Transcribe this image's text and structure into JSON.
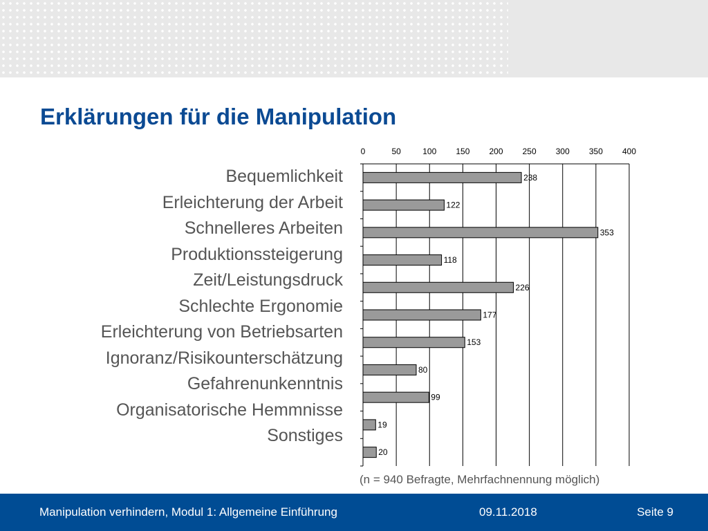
{
  "slide": {
    "title": "Erklärungen für die Manipulation",
    "note": "(n = 940 Befragte, Mehrfachnennung möglich)",
    "footer": {
      "course": "Manipulation verhindern, Modul 1: Allgemeine Einführung",
      "date": "09.11.2018",
      "page": "Seite 9"
    },
    "colors": {
      "title": "#0b4a93",
      "footer_bg": "#004c94",
      "bar_fill": "#9a9a9a",
      "label_text": "#555555"
    }
  },
  "chart_data": {
    "type": "bar",
    "orientation": "horizontal",
    "categories": [
      "Bequemlichkeit",
      "Erleichterung der Arbeit",
      "Schnelleres Arbeiten",
      "Produktionssteigerung",
      "Zeit/Leistungsdruck",
      "Schlechte Ergonomie",
      "Erleichterung von Betriebsarten",
      "Ignoranz/Risikounterschätzung",
      "Gefahrenunkenntnis",
      "Organisatorische Hemmnisse",
      "Sonstiges"
    ],
    "values": [
      238,
      122,
      353,
      118,
      226,
      177,
      153,
      80,
      99,
      19,
      20
    ],
    "xlim": [
      0,
      400
    ],
    "xticks": [
      0,
      50,
      100,
      150,
      200,
      250,
      300,
      350,
      400
    ],
    "axis_position": "top",
    "grid": true,
    "data_labels": true
  }
}
